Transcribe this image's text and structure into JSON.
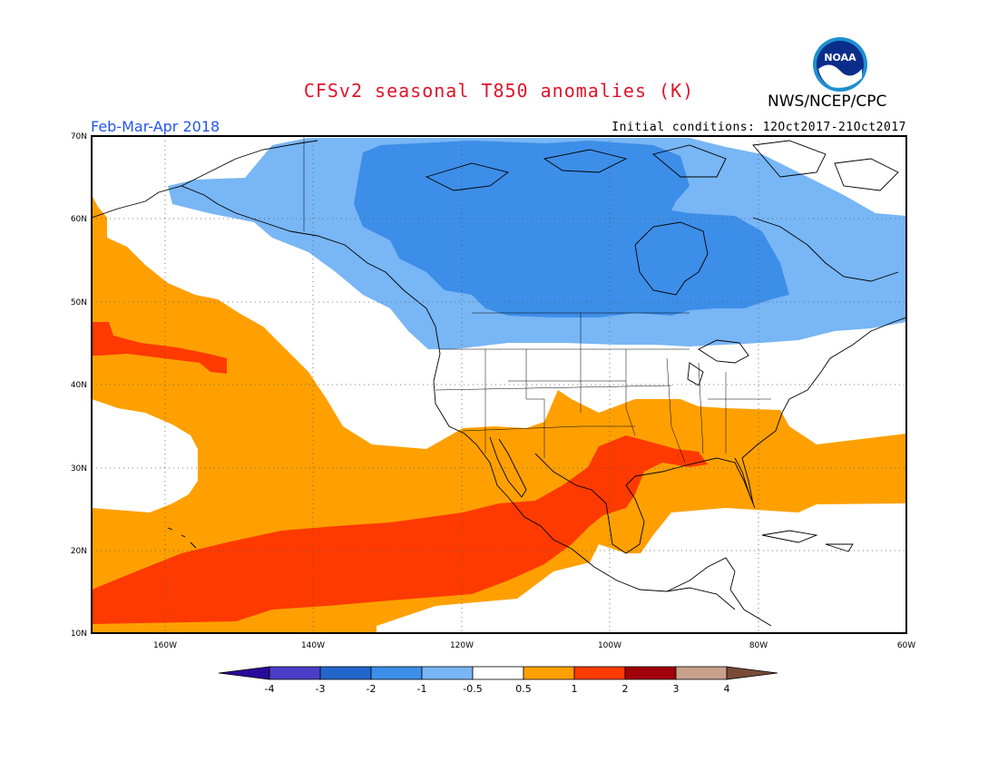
{
  "title": "CFSv2 seasonal T850 anomalies (K)",
  "agency": "NWS/NCEP/CPC",
  "logo_text": "NOAA",
  "period": "Feb-Mar-Apr 2018",
  "initial_conditions": "Initial conditions: 12Oct2017-21Oct2017",
  "map": {
    "lon_range": [
      -170,
      -60
    ],
    "lat_range": [
      10,
      70
    ],
    "grid": "dotted",
    "lat_ticks": [
      "70N",
      "60N",
      "50N",
      "40N",
      "30N",
      "20N",
      "10N"
    ],
    "lon_ticks": [
      "160W",
      "140W",
      "120W",
      "100W",
      "80W",
      "60W"
    ]
  },
  "legend": {
    "labels": [
      "-4",
      "-3",
      "-2",
      "-1",
      "-0.5",
      "0.5",
      "1",
      "2",
      "3",
      "4"
    ],
    "colors": [
      "#2a0a9a",
      "#4a3ec8",
      "#2266cc",
      "#3d8ee8",
      "#78b6f5",
      "#ffffff",
      "#ffa000",
      "#ff3a00",
      "#a0000a",
      "#c8a08c",
      "#7a4a38"
    ]
  },
  "anomaly_regions": [
    {
      "label": "light-blue",
      "range": "-1 to -0.5"
    },
    {
      "label": "blue",
      "range": "-2 to -1"
    },
    {
      "label": "orange",
      "range": "0.5 to 1"
    },
    {
      "label": "red-orange",
      "range": "1 to 2"
    }
  ]
}
